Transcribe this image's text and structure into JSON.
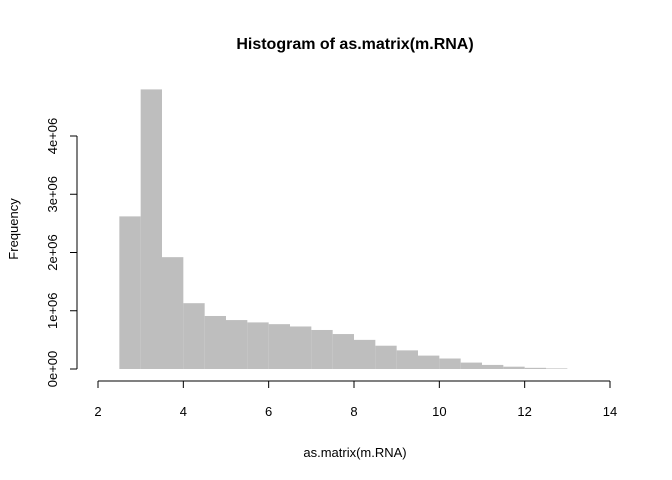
{
  "chart_data": {
    "type": "bar",
    "title": "Histogram of as.matrix(m.RNA)",
    "xlabel": "as.matrix(m.RNA)",
    "ylabel": "Frequency",
    "xlim": [
      2,
      14
    ],
    "ylim": [
      0,
      4000000
    ],
    "x_ticks": [
      "2",
      "4",
      "6",
      "8",
      "10",
      "12",
      "14"
    ],
    "y_ticks": [
      "0e+00",
      "1e+06",
      "2e+06",
      "3e+06",
      "4e+06"
    ],
    "bin_width": 0.5,
    "bin_starts": [
      2.5,
      3.0,
      3.5,
      4.0,
      4.5,
      5.0,
      5.5,
      6.0,
      6.5,
      7.0,
      7.5,
      8.0,
      8.5,
      9.0,
      9.5,
      10.0,
      10.5,
      11.0,
      11.5,
      12.0,
      12.5
    ],
    "values": [
      2620000,
      4800000,
      1920000,
      1130000,
      910000,
      840000,
      800000,
      770000,
      730000,
      670000,
      600000,
      500000,
      400000,
      320000,
      230000,
      180000,
      110000,
      70000,
      40000,
      20000,
      10000
    ],
    "bar_color": "#bebebe",
    "grid": false,
    "legend": "none"
  }
}
